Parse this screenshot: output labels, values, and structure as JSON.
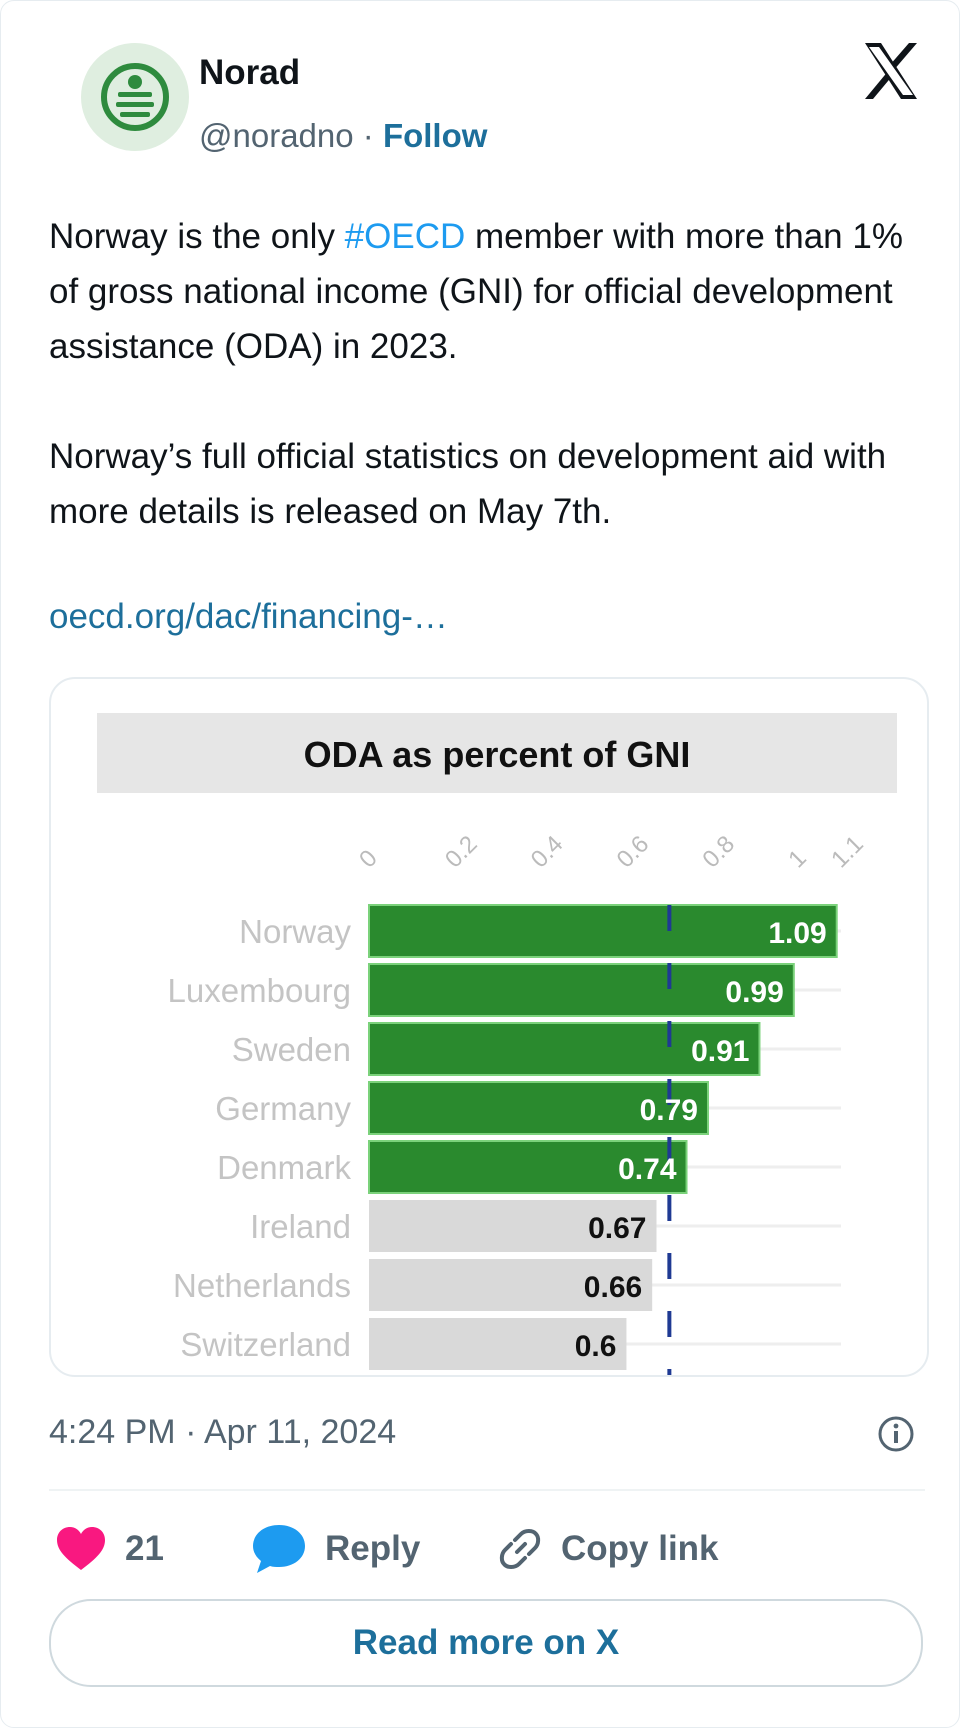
{
  "author": {
    "name": "Norad",
    "handle": "@noradno",
    "separator": "·",
    "follow_label": "Follow"
  },
  "tweet": {
    "para1_before": "Norway is the only ",
    "hashtag": "#OECD",
    "para1_after": " member with more than 1% of gross national income (GNI) for official development assistance (ODA) in 2023.",
    "para2": "Norway’s full official statistics on development aid with more details is released on May 7th.",
    "link": "oecd.org/dac/financing-…"
  },
  "chart_data": {
    "type": "bar",
    "orientation": "horizontal",
    "title": "ODA as percent of GNI",
    "x_ticks": [
      "0",
      "0.2",
      "0.4",
      "0.6",
      "0.8",
      "1",
      "1.1"
    ],
    "xlim": [
      0,
      1.1
    ],
    "reference_value": 0.7,
    "categories": [
      "Norway",
      "Luxembourg",
      "Sweden",
      "Germany",
      "Denmark",
      "Ireland",
      "Netherlands",
      "Switzerland"
    ],
    "values": [
      1.09,
      0.99,
      0.91,
      0.79,
      0.74,
      0.67,
      0.66,
      0.6
    ],
    "value_labels": [
      "1.09",
      "0.99",
      "0.91",
      "0.79",
      "0.74",
      "0.67",
      "0.66",
      "0.6"
    ],
    "highlight": [
      true,
      true,
      true,
      true,
      true,
      false,
      false,
      false
    ],
    "colors": {
      "highlight": "#2a8a2e",
      "other": "#d9d9d9",
      "reference": "#1f3a93",
      "title_bg": "#e6e6e6"
    },
    "grid": true
  },
  "footer": {
    "timestamp": "4:24 PM · Apr 11, 2024",
    "likes_count": "21",
    "reply_label": "Reply",
    "copy_label": "Copy link",
    "read_more": "Read more on X"
  },
  "icons": {
    "close": "x-logo-icon",
    "info": "info-icon",
    "like": "heart-icon",
    "reply": "speech-bubble-icon",
    "copy": "link-icon"
  },
  "colors": {
    "heart": "#f91880",
    "reply": "#1d9bf0",
    "link": "#1d6f9b"
  }
}
